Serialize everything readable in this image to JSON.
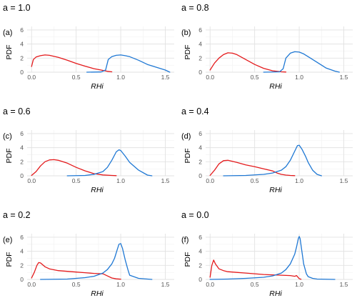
{
  "chart_data": [
    {
      "type": "line",
      "tag": "(a)",
      "title": "a = 1.0",
      "xlabel": "RHi",
      "ylabel": "PDF",
      "xlim": [
        -0.05,
        1.6
      ],
      "ylim": [
        0,
        6.5
      ],
      "xticks": [
        "0.0",
        "0.5",
        "1.0",
        "1.5"
      ],
      "yticks": [
        "0",
        "2",
        "4",
        "6"
      ],
      "grid": true,
      "series": [
        {
          "color": "#e41a1c",
          "x": [
            0.0,
            0.02,
            0.05,
            0.1,
            0.15,
            0.2,
            0.3,
            0.4,
            0.5,
            0.6,
            0.7,
            0.8,
            0.85,
            0.9
          ],
          "y": [
            0.8,
            1.8,
            2.15,
            2.35,
            2.45,
            2.4,
            2.1,
            1.7,
            1.25,
            0.85,
            0.5,
            0.25,
            0.12,
            0.05
          ]
        },
        {
          "color": "#1f78d4",
          "x": [
            0.62,
            0.78,
            0.83,
            0.86,
            0.9,
            0.95,
            1.0,
            1.05,
            1.1,
            1.2,
            1.3,
            1.4,
            1.5,
            1.55
          ],
          "y": [
            0.0,
            0.03,
            0.3,
            1.8,
            2.2,
            2.4,
            2.45,
            2.35,
            2.2,
            1.7,
            1.1,
            0.7,
            0.3,
            0.0
          ]
        }
      ]
    },
    {
      "type": "line",
      "tag": "(b)",
      "title": "a = 0.8",
      "xlabel": "RHi",
      "ylabel": "PDF",
      "xlim": [
        -0.05,
        1.6
      ],
      "ylim": [
        0,
        6.5
      ],
      "xticks": [
        "0.0",
        "0.5",
        "1.0",
        "1.5"
      ],
      "yticks": [
        "0",
        "2",
        "4",
        "6"
      ],
      "grid": true,
      "series": [
        {
          "color": "#e41a1c",
          "x": [
            0.0,
            0.05,
            0.1,
            0.15,
            0.2,
            0.25,
            0.3,
            0.4,
            0.5,
            0.6,
            0.7,
            0.8,
            0.85
          ],
          "y": [
            0.3,
            1.3,
            2.0,
            2.5,
            2.75,
            2.7,
            2.5,
            1.8,
            1.1,
            0.55,
            0.2,
            0.05,
            0.02
          ]
        },
        {
          "color": "#1f78d4",
          "x": [
            0.6,
            0.78,
            0.82,
            0.85,
            0.9,
            0.95,
            1.0,
            1.05,
            1.1,
            1.2,
            1.3,
            1.4,
            1.45
          ],
          "y": [
            0.0,
            0.05,
            0.5,
            2.0,
            2.7,
            2.9,
            2.85,
            2.6,
            2.2,
            1.4,
            0.6,
            0.15,
            0.0
          ]
        }
      ]
    },
    {
      "type": "line",
      "tag": "(c)",
      "title": "a = 0.6",
      "xlabel": "RHi",
      "ylabel": "PDF",
      "xlim": [
        -0.05,
        1.6
      ],
      "ylim": [
        0,
        6.5
      ],
      "xticks": [
        "0.0",
        "0.5",
        "1.0",
        "1.5"
      ],
      "yticks": [
        "0",
        "2",
        "4",
        "6"
      ],
      "grid": true,
      "series": [
        {
          "color": "#e41a1c",
          "x": [
            0.0,
            0.05,
            0.1,
            0.15,
            0.2,
            0.25,
            0.3,
            0.4,
            0.5,
            0.6,
            0.7,
            0.8,
            0.9,
            0.95
          ],
          "y": [
            0.05,
            0.6,
            1.4,
            2.0,
            2.25,
            2.3,
            2.2,
            1.8,
            1.2,
            0.7,
            0.3,
            0.12,
            0.05,
            0.02
          ]
        },
        {
          "color": "#1f78d4",
          "x": [
            0.4,
            0.6,
            0.7,
            0.8,
            0.85,
            0.9,
            0.95,
            0.98,
            1.0,
            1.05,
            1.1,
            1.2,
            1.3,
            1.35
          ],
          "y": [
            0.0,
            0.05,
            0.2,
            0.6,
            1.2,
            2.2,
            3.4,
            3.7,
            3.6,
            2.8,
            1.9,
            0.8,
            0.1,
            0.0
          ]
        }
      ]
    },
    {
      "type": "line",
      "tag": "(d)",
      "title": "a = 0.4",
      "xlabel": "RHi",
      "ylabel": "PDF",
      "xlim": [
        -0.05,
        1.6
      ],
      "ylim": [
        0,
        6.5
      ],
      "xticks": [
        "0.0",
        "0.5",
        "1.0",
        "1.5"
      ],
      "yticks": [
        "0",
        "2",
        "4",
        "6"
      ],
      "grid": true,
      "series": [
        {
          "color": "#e41a1c",
          "x": [
            0.0,
            0.05,
            0.1,
            0.15,
            0.2,
            0.3,
            0.4,
            0.5,
            0.6,
            0.7,
            0.75,
            0.8,
            0.85,
            0.9,
            0.95
          ],
          "y": [
            0.05,
            0.8,
            1.7,
            2.15,
            2.2,
            1.9,
            1.55,
            1.3,
            1.0,
            0.7,
            0.4,
            0.2,
            0.1,
            0.05,
            0.02
          ]
        },
        {
          "color": "#1f78d4",
          "x": [
            0.15,
            0.4,
            0.6,
            0.7,
            0.8,
            0.85,
            0.9,
            0.95,
            0.98,
            1.0,
            1.03,
            1.07,
            1.1,
            1.15,
            1.2,
            1.25
          ],
          "y": [
            0.0,
            0.05,
            0.2,
            0.4,
            0.8,
            1.3,
            2.2,
            3.5,
            4.3,
            4.35,
            3.8,
            2.8,
            1.9,
            0.8,
            0.2,
            0.0
          ]
        }
      ]
    },
    {
      "type": "line",
      "tag": "(e)",
      "title": "a = 0.2",
      "xlabel": "RHi",
      "ylabel": "PDF",
      "xlim": [
        -0.05,
        1.6
      ],
      "ylim": [
        0,
        6.5
      ],
      "xticks": [
        "0.0",
        "0.5",
        "1.0",
        "1.5"
      ],
      "yticks": [
        "0",
        "2",
        "4",
        "6"
      ],
      "grid": true,
      "series": [
        {
          "color": "#e41a1c",
          "x": [
            0.0,
            0.03,
            0.06,
            0.08,
            0.1,
            0.15,
            0.2,
            0.3,
            0.4,
            0.5,
            0.6,
            0.7,
            0.8,
            0.85,
            0.9,
            0.95,
            1.0
          ],
          "y": [
            0.2,
            1.0,
            2.0,
            2.4,
            2.35,
            1.8,
            1.5,
            1.25,
            1.15,
            1.05,
            0.95,
            0.85,
            0.8,
            0.5,
            0.2,
            0.08,
            0.03
          ]
        },
        {
          "color": "#1f78d4",
          "x": [
            0.1,
            0.4,
            0.6,
            0.7,
            0.8,
            0.85,
            0.9,
            0.93,
            0.96,
            0.98,
            1.0,
            1.02,
            1.05,
            1.08,
            1.1,
            1.2,
            1.3,
            1.35
          ],
          "y": [
            0.0,
            0.05,
            0.25,
            0.45,
            0.9,
            1.4,
            2.2,
            3.0,
            4.2,
            5.0,
            5.1,
            4.4,
            2.8,
            1.4,
            0.6,
            0.15,
            0.05,
            0.0
          ]
        }
      ]
    },
    {
      "type": "line",
      "tag": "(f)",
      "title": "a = 0.0",
      "xlabel": "RHi",
      "ylabel": "PDF",
      "xlim": [
        -0.05,
        1.6
      ],
      "ylim": [
        0,
        6.5
      ],
      "xticks": [
        "0.0",
        "0.5",
        "1.0",
        "1.5"
      ],
      "yticks": [
        "0",
        "2",
        "4",
        "6"
      ],
      "grid": true,
      "series": [
        {
          "color": "#e41a1c",
          "x": [
            0.0,
            0.02,
            0.04,
            0.06,
            0.1,
            0.15,
            0.2,
            0.3,
            0.4,
            0.5,
            0.6,
            0.7,
            0.8,
            0.9,
            0.95,
            0.97,
            1.0,
            1.02
          ],
          "y": [
            0.3,
            2.0,
            2.75,
            2.2,
            1.5,
            1.25,
            1.1,
            1.0,
            0.9,
            0.8,
            0.7,
            0.65,
            0.6,
            0.55,
            0.45,
            0.55,
            0.1,
            0.02
          ]
        },
        {
          "color": "#1f78d4",
          "x": [
            0.0,
            0.2,
            0.4,
            0.6,
            0.7,
            0.8,
            0.85,
            0.9,
            0.95,
            0.97,
            0.99,
            1.0,
            1.01,
            1.03,
            1.05,
            1.08,
            1.1,
            1.15,
            1.2,
            1.4
          ],
          "y": [
            0.0,
            0.05,
            0.15,
            0.3,
            0.5,
            0.9,
            1.4,
            2.2,
            3.6,
            4.6,
            5.8,
            6.1,
            5.8,
            4.0,
            2.2,
            0.8,
            0.4,
            0.15,
            0.05,
            0.0
          ]
        }
      ]
    }
  ]
}
